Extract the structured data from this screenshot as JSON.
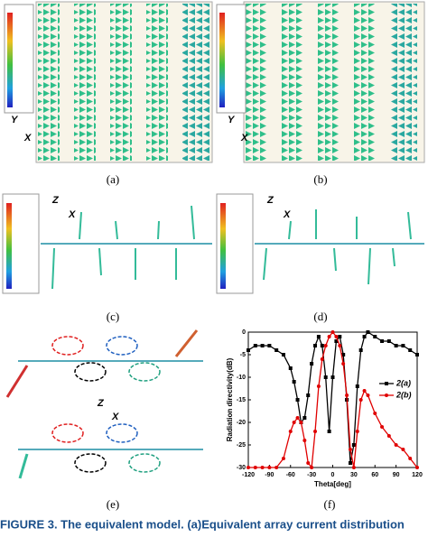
{
  "panels": [
    {
      "label": "(a)",
      "axes": [
        "Y",
        "X"
      ]
    },
    {
      "label": "(b)",
      "axes": [
        "Y",
        "X"
      ]
    },
    {
      "label": "(c)",
      "axes": [
        "Z",
        "X"
      ]
    },
    {
      "label": "(d)",
      "axes": [
        "Z",
        "X"
      ]
    },
    {
      "label": "(e)",
      "axes": [
        "Z",
        "X"
      ]
    },
    {
      "label": "(f)"
    }
  ],
  "chart_data": {
    "type": "line",
    "xlabel": "Theta[deg]",
    "ylabel": "Radiation directivity(dB)",
    "xlim": [
      -120,
      120
    ],
    "xticks": [
      -120,
      -90,
      -60,
      -30,
      0,
      30,
      60,
      90,
      120
    ],
    "ylim": [
      -30,
      0
    ],
    "yticks": [
      0,
      -5,
      -10,
      -15,
      -20,
      -25,
      -30
    ],
    "legend": "right",
    "x": [
      -120,
      -110,
      -100,
      -90,
      -80,
      -70,
      -60,
      -55,
      -50,
      -45,
      -40,
      -35,
      -30,
      -25,
      -20,
      -15,
      -10,
      -5,
      0,
      5,
      10,
      15,
      20,
      25,
      30,
      35,
      40,
      45,
      50,
      60,
      70,
      80,
      90,
      100,
      110,
      120
    ],
    "series": [
      {
        "name": "2(a)",
        "color": "#000000",
        "marker": "square",
        "values": [
          -4,
          -3,
          -3,
          -3,
          -4,
          -5,
          -8,
          -11,
          -15,
          -20,
          -19,
          -14,
          -7,
          -3,
          -1,
          -3,
          -10,
          -22,
          -10,
          -2,
          -1,
          -5,
          -15,
          -29,
          -25,
          -12,
          -4,
          -1,
          0,
          -1,
          -2,
          -2,
          -3,
          -3,
          -4,
          -5
        ]
      },
      {
        "name": "2(b)",
        "color": "#e00000",
        "marker": "circle",
        "values": [
          -30,
          -30,
          -30,
          -30,
          -30,
          -28,
          -22,
          -20,
          -19,
          -20,
          -24,
          -29,
          -30,
          -22,
          -12,
          -6,
          -3,
          -1,
          0,
          -1,
          -3,
          -7,
          -14,
          -26,
          -30,
          -22,
          -15,
          -13,
          -14,
          -18,
          -21,
          -23,
          -25,
          -26,
          -28,
          -30
        ]
      }
    ]
  },
  "caption": "FIGURE 3. The equivalent model. (a)Equivalent array current distribution"
}
